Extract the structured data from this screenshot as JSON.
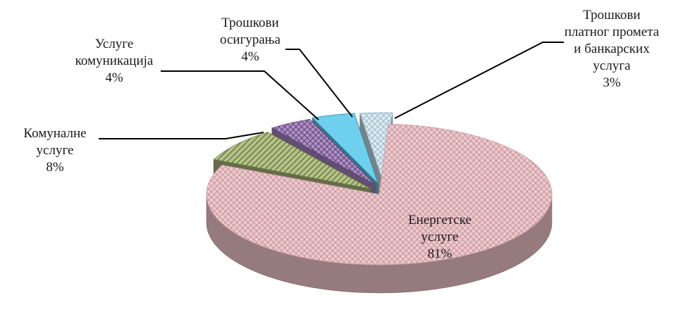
{
  "chart_data": {
    "type": "pie",
    "title": "",
    "slices": [
      {
        "label": [
          "Енергетске",
          "услуге"
        ],
        "value": 81,
        "value_label": "81%",
        "color": "#f2c7cc",
        "edge": "#c99aa0",
        "pattern": "diamond"
      },
      {
        "label": [
          "Комуналне",
          "услуге"
        ],
        "value": 8,
        "value_label": "8%",
        "color": "#b5c484",
        "edge": "#6f7d45",
        "pattern": "diag"
      },
      {
        "label": [
          "Услуге",
          "комуникација"
        ],
        "value": 4,
        "value_label": "4%",
        "color": "#b48fcf",
        "edge": "#5e3f78",
        "pattern": "cross"
      },
      {
        "label": [
          "Трошкови",
          "осигурања"
        ],
        "value": 4,
        "value_label": "4%",
        "color": "#6fd0ee",
        "edge": "#2a8fb0",
        "pattern": "solid"
      },
      {
        "label": [
          "Трошкови",
          "платног промета",
          "и банкарских",
          "услуга"
        ],
        "value": 3,
        "value_label": "3%",
        "color": "#d6ecf6",
        "edge": "#7fa9c0",
        "pattern": "diamond"
      }
    ]
  }
}
